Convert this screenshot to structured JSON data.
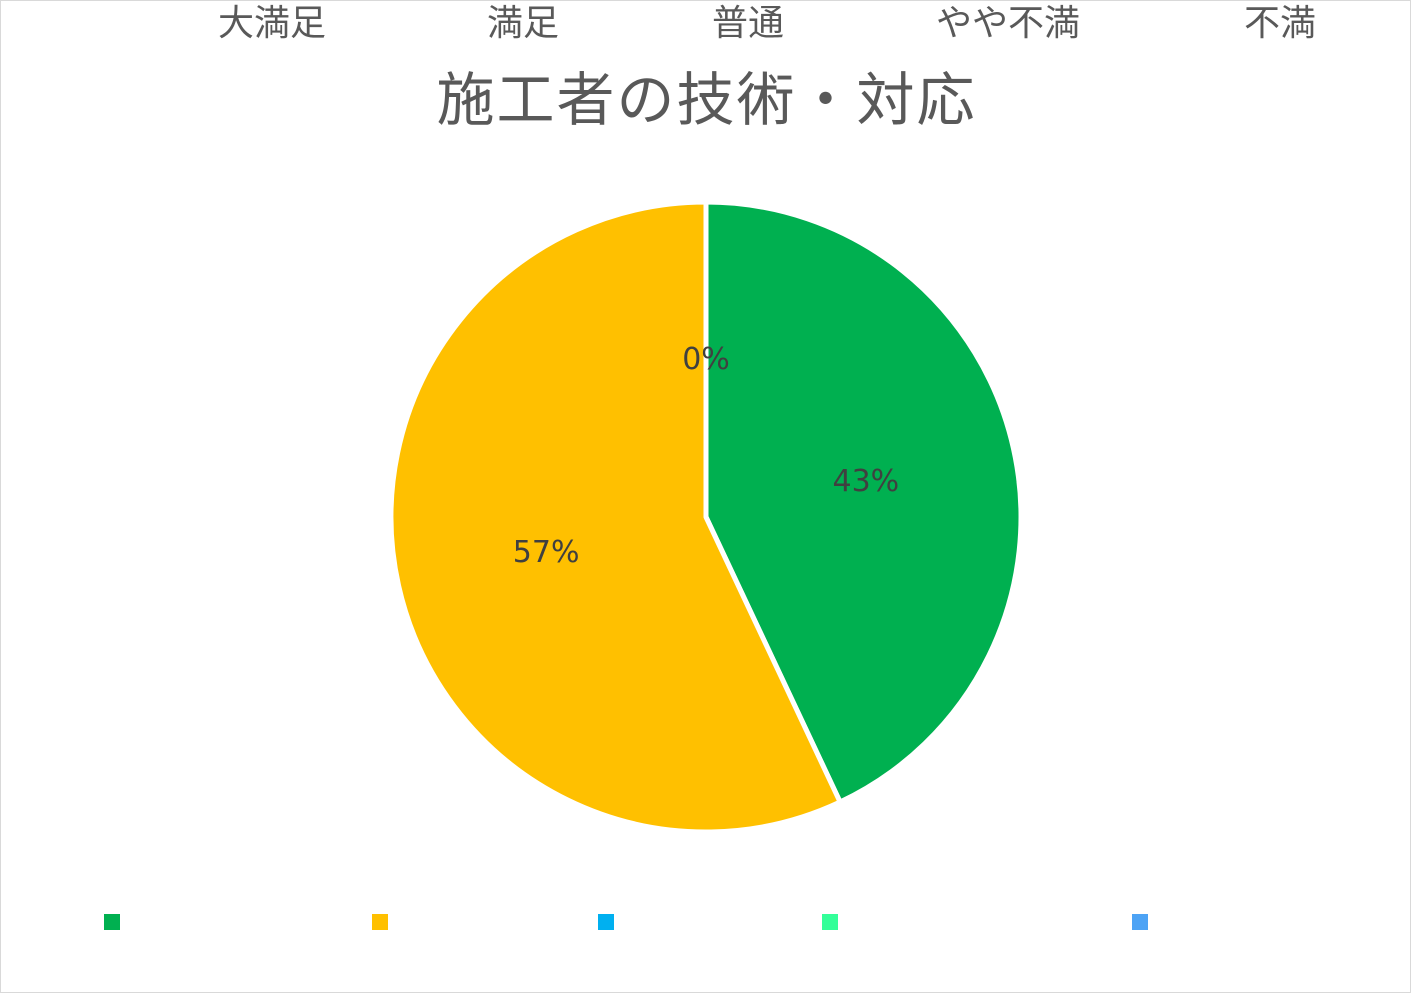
{
  "chart_data": {
    "type": "pie",
    "title": "施工者の技術・対応",
    "categories": [
      "大満足",
      "満足",
      "普通",
      "やや不満",
      "不満"
    ],
    "values": [
      43,
      57,
      0,
      0,
      0
    ],
    "labels": [
      "43%",
      "57%",
      "0%",
      "",
      ""
    ],
    "colors": [
      "#00b050",
      "#ffc000",
      "#00b0f0",
      "#33ff99",
      "#4da3f5"
    ],
    "legend_position": "bottom",
    "start_angle": "12 o'clock, clockwise"
  }
}
